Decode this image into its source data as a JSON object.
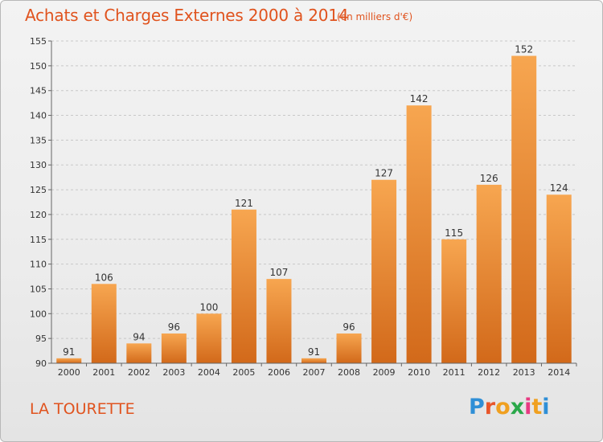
{
  "header": {
    "title": "Achats et Charges Externes 2000 à 2014",
    "unit": "(en milliers d'€)"
  },
  "footer": {
    "commune": "LA TOURETTE",
    "logo_text": "Proxiti"
  },
  "colors": {
    "accent": "#e0531e",
    "bar_light": "#f7a650",
    "bar_dark": "#d2691a",
    "grid": "#c8c8c8",
    "background": "#ececec"
  },
  "chart_data": {
    "type": "bar",
    "title": "Achats et Charges Externes 2000 à 2014",
    "subtitle": "(en milliers d'€)",
    "xlabel": "",
    "ylabel": "",
    "categories": [
      "2000",
      "2001",
      "2002",
      "2003",
      "2004",
      "2005",
      "2006",
      "2007",
      "2008",
      "2009",
      "2010",
      "2011",
      "2012",
      "2013",
      "2014"
    ],
    "values": [
      91,
      106,
      94,
      96,
      100,
      121,
      107,
      91,
      96,
      127,
      142,
      115,
      126,
      152,
      124
    ],
    "ylim": [
      90,
      155
    ],
    "yticks": [
      90,
      95,
      100,
      105,
      110,
      115,
      120,
      125,
      130,
      135,
      140,
      145,
      150,
      155
    ],
    "grid": "horizontal dashed",
    "legend": "none",
    "data_labels": true
  }
}
